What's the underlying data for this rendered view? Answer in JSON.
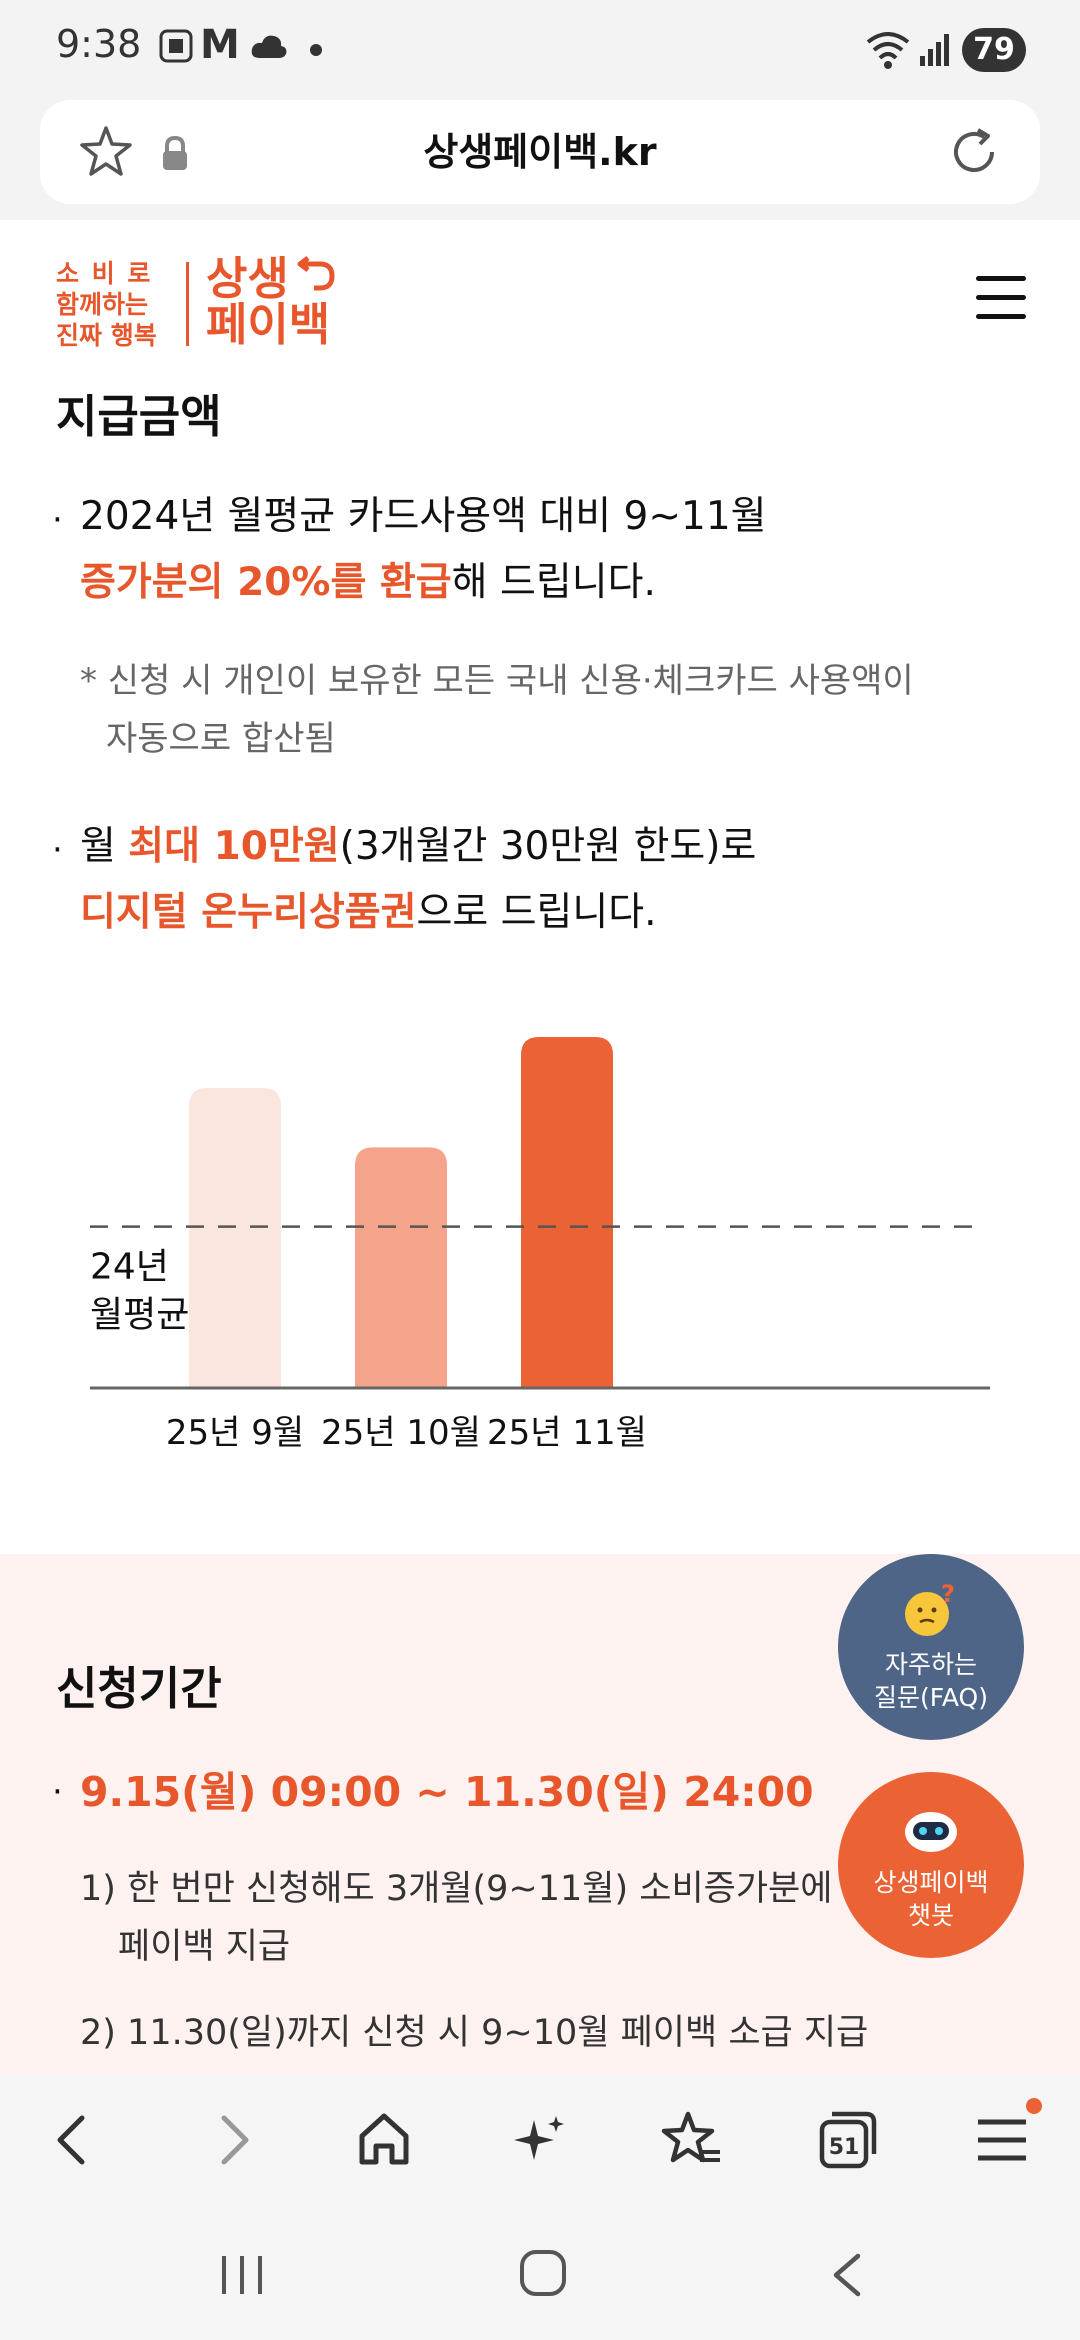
{
  "status_bar": {
    "time": "9:38",
    "indicator_m": "M",
    "battery": "79"
  },
  "browser": {
    "url": "상생페이백.kr"
  },
  "logo": {
    "tagline": [
      "소 비 로",
      "함께하는",
      "진짜 행복"
    ],
    "main": [
      "상생",
      "페이백"
    ]
  },
  "payment": {
    "title": "지급금액",
    "line1_prefix": "2024년 월평균 카드사용액 대비 9~11월",
    "line1_accent": "증가분의 20%를 환급",
    "line1_suffix": "해 드립니다.",
    "note_line1": "* 신청 시 개인이 보유한 모든 국내 신용·체크카드 사용액이",
    "note_line2": "자동으로 합산됨",
    "line2_prefix": "월 ",
    "line2_accent1": "최대 10만원",
    "line2_mid": "(3개월간 30만원 한도)로",
    "line2_accent2": "디지털 온누리상품권",
    "line2_suffix": "으로 드립니다."
  },
  "chart_data": {
    "type": "bar",
    "categories": [
      "25년 9월",
      "25년 10월",
      "25년 11월"
    ],
    "values": [
      212,
      170,
      248
    ],
    "baseline_label_line1": "24년",
    "baseline_label_line2": "월평균",
    "baseline_value": 114,
    "ylim": [
      0,
      260
    ],
    "colors": [
      "#fbe6df",
      "#f4a48b",
      "#eb6234"
    ]
  },
  "period": {
    "title": "신청기간",
    "dates": "9.15(월) 09:00 ~ 11.30(일) 24:00",
    "item1_line1": "1) 한 번만 신청해도 3개월(9~11월) 소비증가분에",
    "item1_line2": "페이백 지급",
    "item2": "2) 11.30(일)까지 신청 시 9~10월 페이백 소급 지급"
  },
  "fab": {
    "faq_line1": "자주하는",
    "faq_line2": "질문(FAQ)",
    "bot_line1": "상생페이백",
    "bot_line2": "챗봇"
  },
  "browser_nav": {
    "tabs_count": "51"
  }
}
